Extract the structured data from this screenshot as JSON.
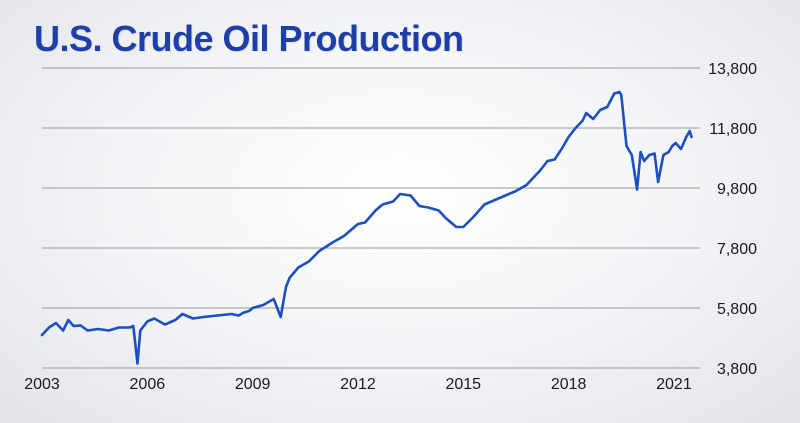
{
  "page": {
    "title": "U.S. Crude Oil Production",
    "colors": {
      "title": "#1f3fa8",
      "line": "#1c4fbf",
      "grid": "#9a9a9a",
      "text": "#1a1a1a"
    }
  },
  "chart_data": {
    "type": "line",
    "title": "U.S. Crude Oil Production",
    "xlabel": "",
    "ylabel": "",
    "y_axis_side": "right",
    "grid": true,
    "ylim": [
      3800,
      13800
    ],
    "yticks": [
      3800,
      5800,
      7800,
      9800,
      11800,
      13800
    ],
    "ytick_labels": [
      "3,800",
      "5,800",
      "7,800",
      "9,800",
      "11,800",
      "13,800"
    ],
    "xlim": [
      2003,
      2021.6
    ],
    "xticks": [
      2003,
      2006,
      2009,
      2012,
      2015,
      2018,
      2021
    ],
    "xtick_labels": [
      "2003",
      "2006",
      "2009",
      "2012",
      "2015",
      "2018",
      "2021"
    ],
    "series": [
      {
        "x": [
          2003.0,
          2003.2,
          2003.4,
          2003.6,
          2003.75,
          2003.9,
          2004.1,
          2004.3,
          2004.6,
          2004.9,
          2005.2,
          2005.5,
          2005.6,
          2005.72,
          2005.8,
          2006.0,
          2006.2,
          2006.5,
          2006.8,
          2007.0,
          2007.3,
          2007.6,
          2008.0,
          2008.4,
          2008.6,
          2008.75,
          2008.9,
          2009.0,
          2009.3,
          2009.6,
          2009.8,
          2009.95,
          2010.05,
          2010.3,
          2010.6,
          2010.9,
          2011.3,
          2011.6,
          2011.8,
          2012.0,
          2012.2,
          2012.5,
          2012.7,
          2013.0,
          2013.2,
          2013.5,
          2013.75,
          2014.0,
          2014.3,
          2014.5,
          2014.8,
          2015.0,
          2015.3,
          2015.6,
          2015.9,
          2016.2,
          2016.5,
          2016.8,
          2017.2,
          2017.4,
          2017.6,
          2017.8,
          2018.0,
          2018.2,
          2018.4,
          2018.5,
          2018.7,
          2018.9,
          2019.1,
          2019.3,
          2019.45,
          2019.5,
          2019.65,
          2019.8,
          2019.95,
          2020.05,
          2020.15,
          2020.3,
          2020.45,
          2020.55,
          2020.7,
          2020.85,
          2020.95,
          2021.05,
          2021.2,
          2021.35,
          2021.45,
          2021.5
        ],
        "values": [
          4900,
          5150,
          5300,
          5050,
          5400,
          5200,
          5220,
          5050,
          5100,
          5050,
          5150,
          5150,
          5200,
          3950,
          5050,
          5350,
          5450,
          5250,
          5400,
          5600,
          5450,
          5500,
          5550,
          5600,
          5550,
          5650,
          5700,
          5800,
          5900,
          6100,
          5500,
          6500,
          6800,
          7150,
          7350,
          7700,
          8000,
          8200,
          8400,
          8600,
          8650,
          9050,
          9250,
          9350,
          9600,
          9550,
          9200,
          9150,
          9050,
          8800,
          8500,
          8500,
          8850,
          9250,
          9400,
          9550,
          9700,
          9900,
          10400,
          10700,
          10750,
          11100,
          11500,
          11800,
          12050,
          12300,
          12100,
          12400,
          12500,
          12950,
          13000,
          12900,
          11200,
          10900,
          9750,
          11000,
          10700,
          10900,
          10950,
          10000,
          10900,
          11000,
          11200,
          11300,
          11100,
          11500,
          11700,
          11500
        ]
      }
    ]
  }
}
